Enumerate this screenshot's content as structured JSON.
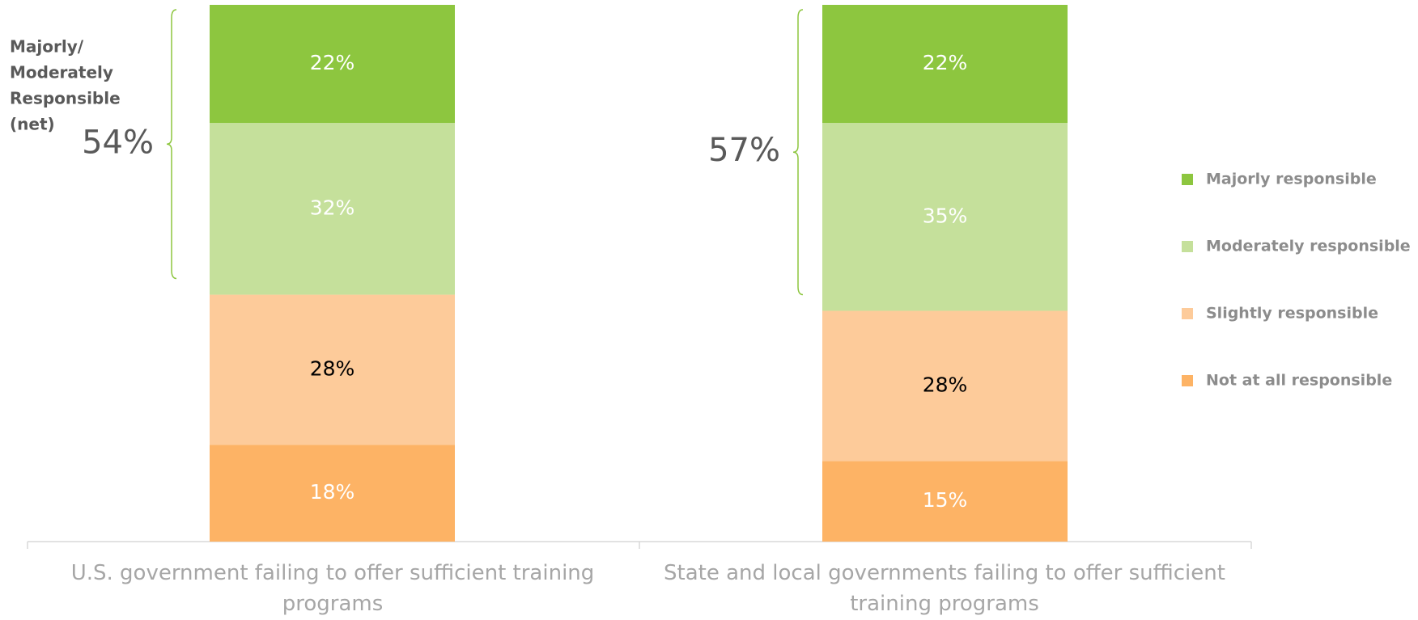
{
  "chart_data": {
    "type": "stacked_bar",
    "categories": [
      "U.S. government failing to offer sufficient training programs",
      "State and local governments failing to offer sufficient training programs"
    ],
    "series": [
      {
        "name": "Majorly responsible",
        "color": "#8dc63f",
        "values": [
          22,
          22
        ],
        "value_labels": [
          "22%",
          "22%"
        ]
      },
      {
        "name": "Moderately responsible",
        "color": "#c5e09b",
        "values": [
          32,
          35
        ],
        "value_labels": [
          "32%",
          "35%"
        ]
      },
      {
        "name": "Slightly responsible",
        "color": "#fdcb9a",
        "values": [
          28,
          28
        ],
        "value_labels": [
          "28%",
          "28%"
        ]
      },
      {
        "name": "Not at all responsible",
        "color": "#fdb365",
        "values": [
          18,
          15
        ],
        "value_labels": [
          "18%",
          "15%"
        ]
      }
    ],
    "net_label": [
      "Majorly/",
      "Moderately",
      "Responsible",
      "(net)"
    ],
    "net": {
      "values": [
        54,
        57
      ],
      "value_labels": [
        "54%",
        "57%"
      ]
    },
    "ylim": [
      0,
      100
    ]
  }
}
